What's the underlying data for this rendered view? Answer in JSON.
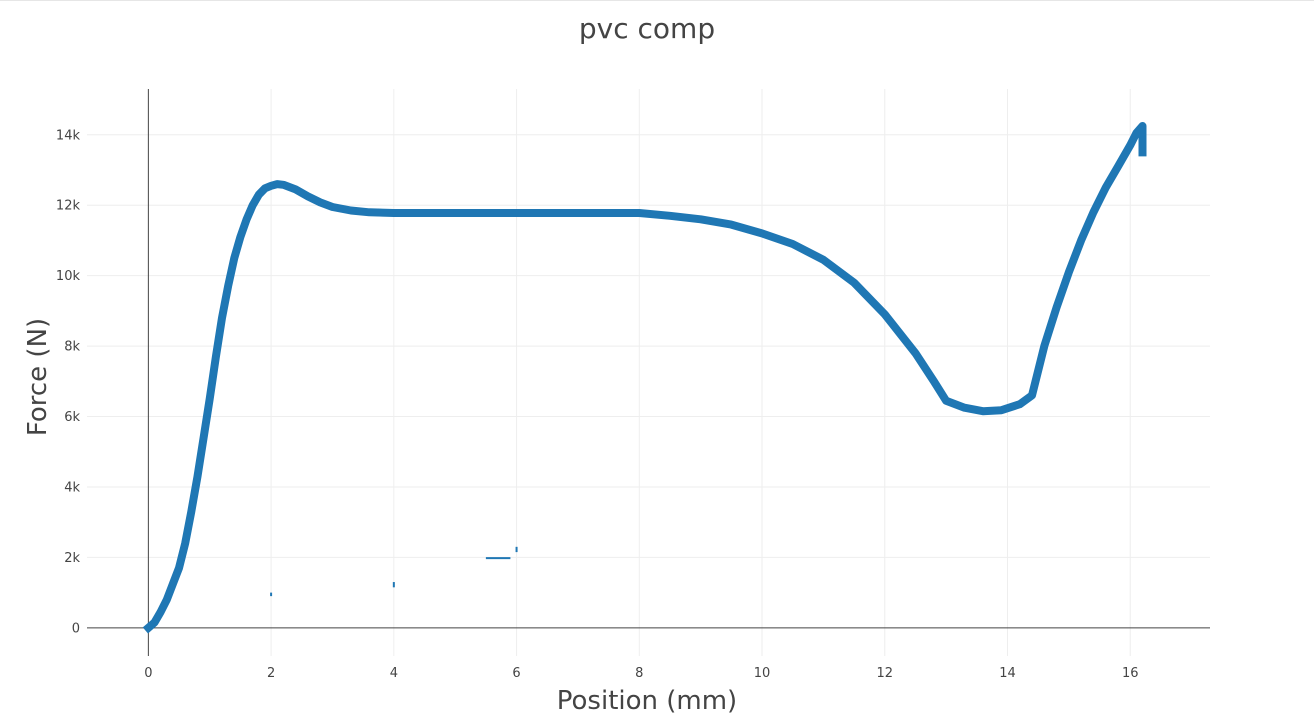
{
  "chart_data": {
    "type": "scatter",
    "title": "pvc comp",
    "xlabel": "Position (mm)",
    "ylabel": "Force (N)",
    "xlim": [
      -1,
      17.3
    ],
    "ylim": [
      -800,
      15300
    ],
    "x_ticks": [
      0,
      2,
      4,
      6,
      8,
      10,
      12,
      14,
      16
    ],
    "x_tick_labels": [
      "0",
      "2",
      "4",
      "6",
      "8",
      "10",
      "12",
      "14",
      "16"
    ],
    "y_ticks": [
      0,
      2000,
      4000,
      6000,
      8000,
      10000,
      12000,
      14000
    ],
    "y_tick_labels": [
      "0",
      "2k",
      "4k",
      "6k",
      "8k",
      "10k",
      "12k",
      "14k"
    ],
    "grid": true,
    "color": "#1f77b4",
    "series": [
      {
        "x": [
          0,
          0.1,
          0.2,
          0.3,
          0.4,
          0.5,
          0.6,
          0.7,
          0.8,
          0.9,
          1.0,
          1.1,
          1.2,
          1.3,
          1.4,
          1.5,
          1.6,
          1.7,
          1.8,
          1.9,
          2.0,
          2.1,
          2.2,
          2.4,
          2.6,
          2.8,
          3.0,
          3.3,
          3.6,
          4.0,
          4.5,
          5.0,
          6.0,
          7.0,
          8.0,
          8.5,
          9.0,
          9.5,
          10.0,
          10.5,
          11.0,
          11.5,
          12.0,
          12.5,
          12.8,
          13.0,
          13.3,
          13.6,
          13.9,
          14.2,
          14.4,
          14.6,
          14.8,
          15.0,
          15.2,
          15.4,
          15.6,
          15.8,
          16.0,
          16.1,
          16.2,
          16.2
        ],
        "y": [
          0,
          150,
          450,
          800,
          1250,
          1700,
          2400,
          3300,
          4300,
          5400,
          6500,
          7700,
          8800,
          9700,
          10500,
          11100,
          11600,
          12000,
          12300,
          12480,
          12550,
          12600,
          12580,
          12450,
          12250,
          12080,
          11950,
          11850,
          11800,
          11780,
          11780,
          11780,
          11780,
          11780,
          11780,
          11700,
          11600,
          11450,
          11200,
          10900,
          10450,
          9800,
          8900,
          7800,
          7000,
          6450,
          6250,
          6150,
          6180,
          6350,
          6600,
          8000,
          9100,
          10100,
          11000,
          11800,
          12500,
          13100,
          13700,
          14050,
          14250,
          13500
        ]
      },
      {
        "x": [
          2.0,
          2.0,
          4.0,
          4.0,
          5.5,
          5.9,
          6.0,
          6.0
        ],
        "y": [
          900,
          1000,
          1150,
          1300,
          1980,
          1980,
          2150,
          2300
        ]
      }
    ]
  }
}
